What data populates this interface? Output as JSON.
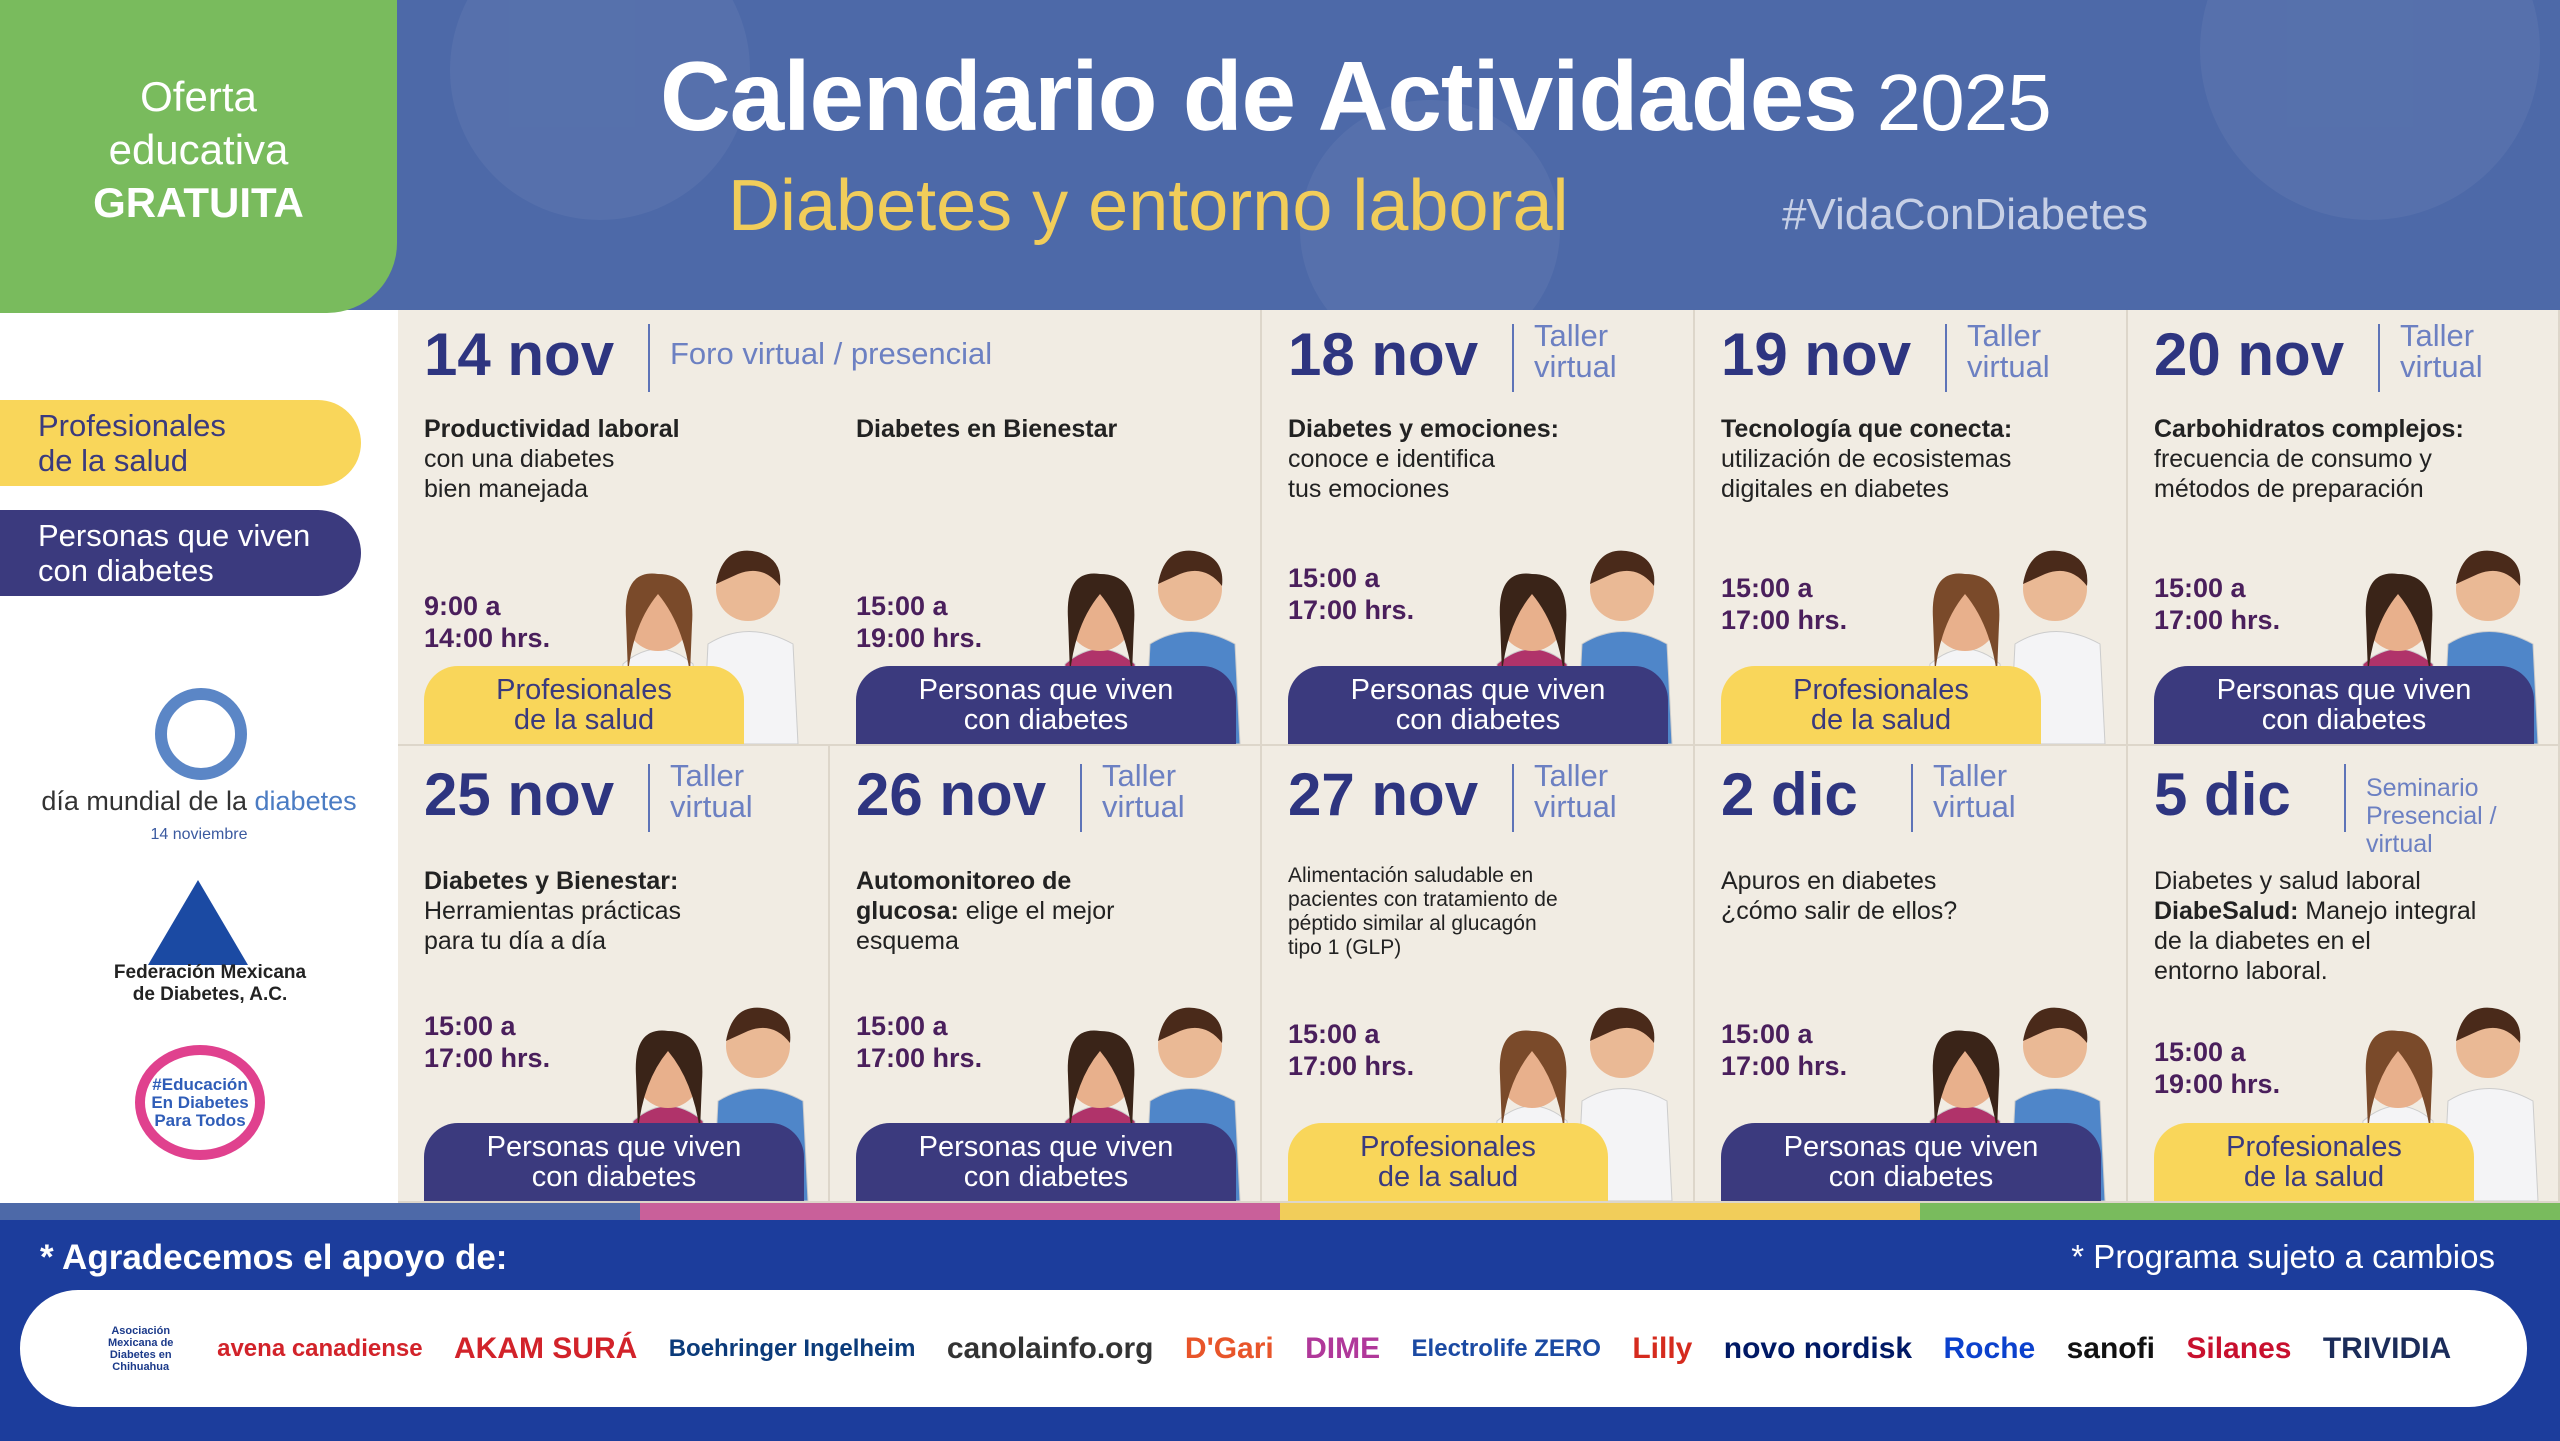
{
  "header": {
    "badge": {
      "line1": "Oferta",
      "line2": "educativa",
      "line3": "GRATUITA"
    },
    "title": "Calendario de Actividades",
    "year": "2025",
    "subtitle": "Diabetes y entorno laboral",
    "hashtag": "#VidaConDiabetes"
  },
  "legend": {
    "pro": "Profesionales\nde la salud",
    "pcd": "Personas que viven\ncon diabetes"
  },
  "logos": {
    "dmd_text_a": "día mundial de la ",
    "dmd_text_b": "diabetes",
    "dmd_date": "14 noviembre",
    "fmd": "Federación Mexicana\nde Diabetes, A.C.",
    "edu": "#Educación En Diabetes Para Todos"
  },
  "audiences": {
    "pro": "Profesionales\nde la salud",
    "pcd": "Personas que viven\ncon diabetes"
  },
  "colors": {
    "header": "#4d69a8",
    "badge": "#79bb5d",
    "yellow": "#f9d65a",
    "indigo": "#3b3a7e",
    "footer": "#1c3d9c"
  },
  "events": [
    {
      "date": "14 nov",
      "type": "Foro virtual / presencial",
      "sessions": [
        {
          "title": [
            {
              "t": "Productividad laboral",
              "b": true
            },
            {
              "t": "\ncon una diabetes\nbien manejada",
              "b": false
            }
          ],
          "time": "9:00 a\n14:00 hrs.",
          "audience": "pro"
        },
        {
          "title": [
            {
              "t": "Diabetes en Bienestar",
              "b": true
            }
          ],
          "time": "15:00 a\n19:00 hrs.",
          "audience": "pcd"
        }
      ]
    },
    {
      "date": "18 nov",
      "type": "Taller\nvirtual",
      "sessions": [
        {
          "title": [
            {
              "t": "Diabetes y emociones:",
              "b": true
            },
            {
              "t": "\nconoce e identifica\ntus emociones",
              "b": false
            }
          ],
          "time": "15:00 a\n17:00 hrs.",
          "audience": "pcd"
        }
      ]
    },
    {
      "date": "19 nov",
      "type": "Taller\nvirtual",
      "sessions": [
        {
          "title": [
            {
              "t": "Tecnología que conecta:",
              "b": true
            },
            {
              "t": "\nutilización de ecosistemas\ndigitales en diabetes",
              "b": false
            }
          ],
          "time": "15:00 a\n17:00 hrs.",
          "audience": "pro"
        }
      ]
    },
    {
      "date": "20 nov",
      "type": "Taller\nvirtual",
      "sessions": [
        {
          "title": [
            {
              "t": "Carbohidratos complejos:",
              "b": true
            },
            {
              "t": "\nfrecuencia de consumo y\nmétodos de preparación",
              "b": false
            }
          ],
          "time": "15:00 a\n17:00 hrs.",
          "audience": "pcd"
        }
      ]
    },
    {
      "date": "25 nov",
      "type": "Taller\nvirtual",
      "sessions": [
        {
          "title": [
            {
              "t": "Diabetes y Bienestar:",
              "b": true
            },
            {
              "t": "\nHerramientas prácticas\npara tu día a día",
              "b": false
            }
          ],
          "time": "15:00 a\n17:00 hrs.",
          "audience": "pcd"
        }
      ]
    },
    {
      "date": "26 nov",
      "type": "Taller\nvirtual",
      "sessions": [
        {
          "title": [
            {
              "t": "Automonitoreo de\nglucosa:",
              "b": true
            },
            {
              "t": " elige el mejor\nesquema",
              "b": false
            }
          ],
          "time": "15:00 a\n17:00 hrs.",
          "audience": "pcd"
        }
      ]
    },
    {
      "date": "27 nov",
      "type": "Taller\nvirtual",
      "small": true,
      "sessions": [
        {
          "title": [
            {
              "t": "Alimentación saludable en\npacientes con tratamiento de\npéptido similar al glucagón\ntipo 1 (GLP)",
              "b": false
            }
          ],
          "time": "15:00 a\n17:00 hrs.",
          "audience": "pro"
        }
      ]
    },
    {
      "date": "2 dic",
      "type": "Taller\nvirtual",
      "sessions": [
        {
          "title": [
            {
              "t": "Apuros en diabetes\n¿cómo salir de ellos?",
              "b": false
            }
          ],
          "time": "15:00 a\n17:00 hrs.",
          "audience": "pcd"
        }
      ]
    },
    {
      "date": "5 dic",
      "type": "Seminario\nPresencial / virtual",
      "smalltype": true,
      "sessions": [
        {
          "title": [
            {
              "t": "Diabetes y salud laboral\n",
              "b": false
            },
            {
              "t": "DiabeSalud:",
              "b": true
            },
            {
              "t": " Manejo integral\nde la diabetes en el\nentorno laboral.",
              "b": false
            }
          ],
          "time": "15:00 a\n19:00 hrs.",
          "audience": "pro"
        }
      ]
    }
  ],
  "strip_colors": [
    "#4d69a8",
    "#c9609a",
    "#f1cd5a",
    "#79bb5d"
  ],
  "footer": {
    "thanks": "* Agradecemos el apoyo de:",
    "disclaimer": "* Programa sujeto a cambios",
    "sponsors": [
      {
        "name": "Asociación Mexicana de Diabetes en Chihuahua",
        "color": "#1b3a8a"
      },
      {
        "name": "avena canadiense",
        "color": "#d2232a"
      },
      {
        "name": "AKAM SURÁ",
        "color": "#d2232a"
      },
      {
        "name": "Boehringer Ingelheim",
        "color": "#0b3b7a"
      },
      {
        "name": "canolainfo.org",
        "color": "#333333"
      },
      {
        "name": "D'Gari",
        "color": "#e8552a"
      },
      {
        "name": "DIME",
        "color": "#b0389a"
      },
      {
        "name": "Electrolife ZERO",
        "color": "#1b4aa3"
      },
      {
        "name": "Lilly",
        "color": "#d52b1e"
      },
      {
        "name": "novo nordisk",
        "color": "#001965"
      },
      {
        "name": "Roche",
        "color": "#0b41cd"
      },
      {
        "name": "sanofi",
        "color": "#111111"
      },
      {
        "name": "Silanes",
        "color": "#c8102e"
      },
      {
        "name": "TRIVIDIA",
        "color": "#1b2c5a"
      }
    ]
  }
}
